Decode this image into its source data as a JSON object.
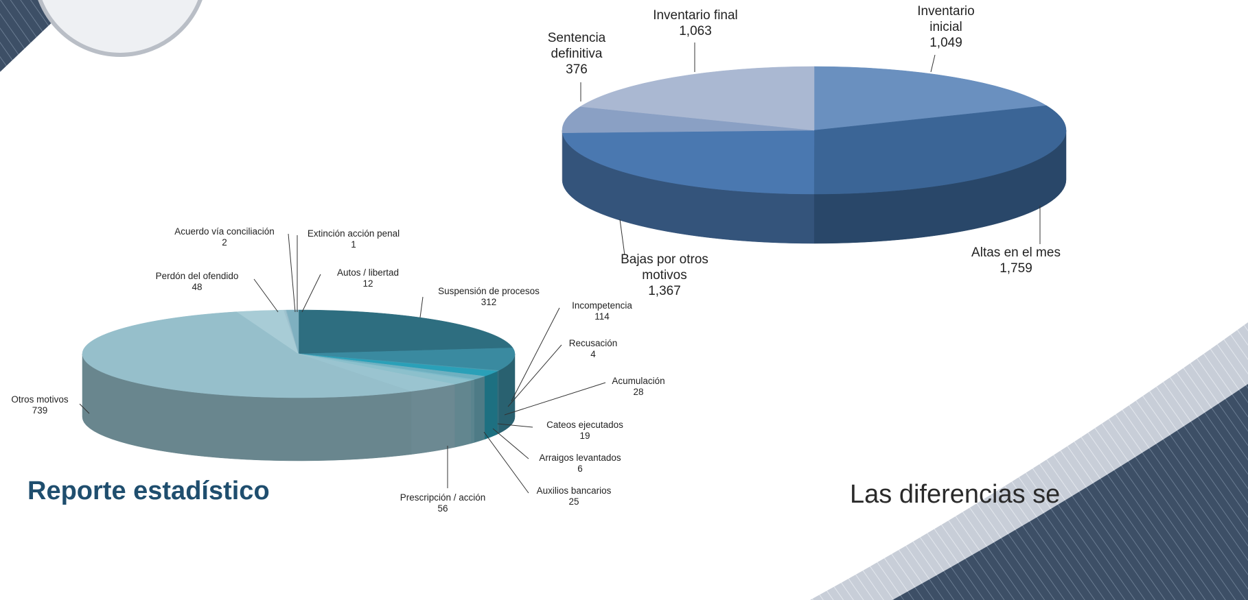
{
  "chart_data": [
    {
      "type": "pie3d",
      "categories": [
        "Inventario inicial",
        "Altas en el mes",
        "Bajas por otros motivos",
        "Sentencia definitiva",
        "Inventario final"
      ],
      "values": [
        1049,
        1759,
        1367,
        376,
        1063
      ],
      "value_labels": [
        "1,049",
        "1,759",
        "1,367",
        "376",
        "1,063"
      ],
      "colors": [
        "#6a90bf",
        "#3b6596",
        "#4a78b0",
        "#8aa0c4",
        "#aab8d2"
      ]
    },
    {
      "type": "pie3d",
      "categories": [
        "Suspensión  de procesos",
        "Incompetencia",
        "Recusación",
        "Acumulación",
        "Cateos ejecutados",
        "Arraigos levantados",
        "Auxilios bancarios",
        "Prescripción / acción",
        "Otros motivos",
        "Perdón del ofendido",
        "Acuerdo vía conciliación",
        "Extinción acción penal",
        "Autos / libertad"
      ],
      "values": [
        312,
        114,
        4,
        28,
        19,
        6,
        25,
        56,
        739,
        48,
        2,
        1,
        12
      ],
      "colors": [
        "#2e6e80",
        "#3a8aa0",
        "#4a9cb0",
        "#2aa0b8",
        "#6fb0c0",
        "#80bccb",
        "#8cc0cc",
        "#9ac4d0",
        "#96bfcb",
        "#a8ccd6",
        "#9fc3cf",
        "#8fb8c6",
        "#7fb0c0"
      ]
    }
  ],
  "slide": {
    "title": "Reporte estadístico",
    "note": "Las diferencias se"
  }
}
